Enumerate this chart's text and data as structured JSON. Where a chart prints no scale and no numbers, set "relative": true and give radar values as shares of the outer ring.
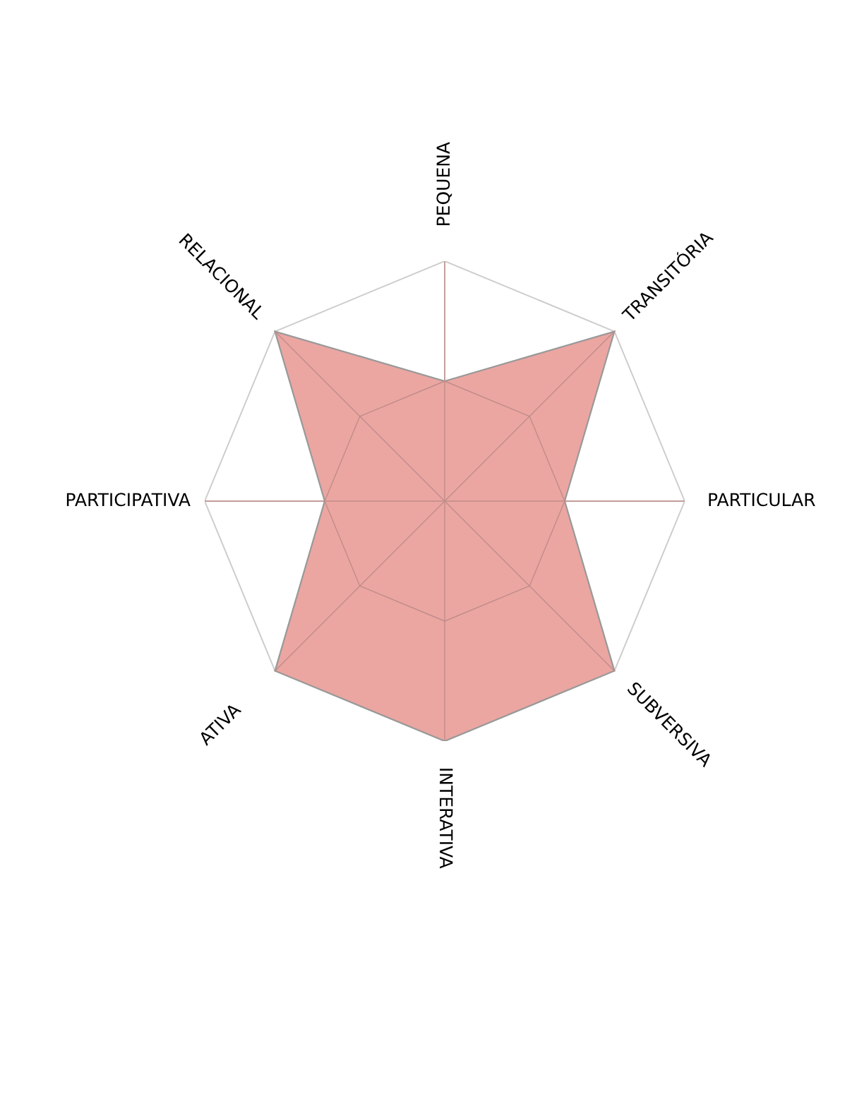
{
  "chart_data": {
    "type": "radar",
    "relative": true,
    "grid": true,
    "categories": [
      "PEQUENA",
      "TRANSITÓRIA",
      "PARTICULAR",
      "SUBVERSIVA",
      "INTERATIVA",
      "ATIVA",
      "PARTICIPATIVA",
      "RELACIONAL"
    ],
    "series": [
      {
        "color": "#eba6a2",
        "values": [
          0.5,
          1,
          0.5,
          1,
          1,
          1,
          0.5,
          1
        ]
      }
    ]
  }
}
